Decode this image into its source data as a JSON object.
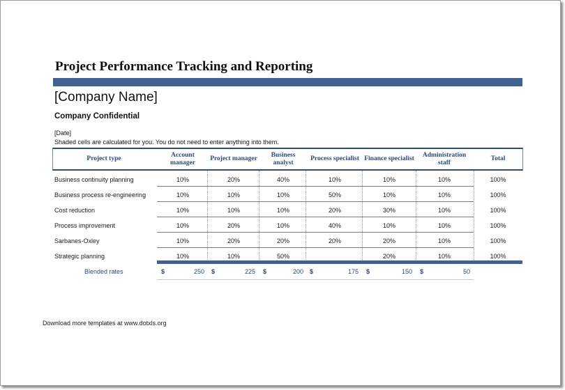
{
  "title": "Project Performance Tracking and Reporting",
  "company_name": "[Company Name]",
  "confidential": "Company Confidential",
  "date": "[Date]",
  "note": "Shaded cells are calculated for you. You do not need to enter anything into them.",
  "table": {
    "headers": [
      "Project type",
      "Account manager",
      "Project manager",
      "Business analyst",
      "Process specialist",
      "Finance specialist",
      "Administration staff",
      "Total"
    ],
    "rows": [
      {
        "label": "Business continuity planning",
        "values": [
          "10%",
          "20%",
          "40%",
          "10%",
          "10%",
          "10%",
          "100%"
        ]
      },
      {
        "label": "Business process re-engineering",
        "values": [
          "10%",
          "10%",
          "10%",
          "50%",
          "10%",
          "10%",
          "100%"
        ]
      },
      {
        "label": "Cost reduction",
        "values": [
          "10%",
          "10%",
          "10%",
          "20%",
          "30%",
          "10%",
          "100%"
        ]
      },
      {
        "label": "Process improvement",
        "values": [
          "10%",
          "20%",
          "10%",
          "40%",
          "10%",
          "10%",
          "100%"
        ]
      },
      {
        "label": "Sarbanes-Oxley",
        "values": [
          "10%",
          "20%",
          "20%",
          "20%",
          "20%",
          "10%",
          "100%"
        ]
      },
      {
        "label": "Strategic planning",
        "values": [
          "10%",
          "10%",
          "50%",
          "",
          "20%",
          "10%",
          "100%"
        ]
      }
    ],
    "blended": {
      "label": "Blended rates",
      "currency": "$",
      "values": [
        "250",
        "225",
        "200",
        "175",
        "150",
        "50"
      ]
    }
  },
  "footer": "Download more templates at www.dotxls.org"
}
